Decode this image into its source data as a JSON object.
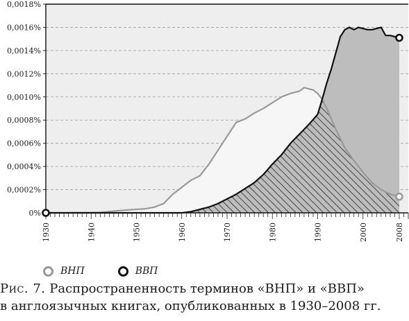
{
  "chart_data": {
    "type": "area",
    "x_ticks": [
      1930,
      1940,
      1950,
      1960,
      1970,
      1980,
      1990,
      2000,
      2008
    ],
    "y_ticks": [
      "0%",
      "0,0002%",
      "0,0004%",
      "0,0006%",
      "0,0008%",
      "0,0010%",
      "0,0012%",
      "0,0014%",
      "0,0016%",
      "0,0018%"
    ],
    "xlim": [
      1930,
      2010
    ],
    "ylim": [
      0,
      0.0018
    ],
    "grid": "horizontal dashed",
    "legend_placement": "bottom-left",
    "series": [
      {
        "name": "ВНП",
        "color": "#999999",
        "x": [
          1930,
          1935,
          1940,
          1942,
          1945,
          1948,
          1950,
          1952,
          1954,
          1956,
          1958,
          1960,
          1962,
          1964,
          1966,
          1968,
          1970,
          1972,
          1974,
          1976,
          1978,
          1980,
          1982,
          1984,
          1986,
          1987,
          1988,
          1989,
          1990,
          1991,
          1992,
          1994,
          1996,
          1998,
          2000,
          2002,
          2004,
          2006,
          2008
        ],
        "values": [
          0.0,
          0.0,
          2e-06,
          3e-06,
          1.5e-05,
          2.5e-05,
          3e-05,
          3.5e-05,
          5e-05,
          8e-05,
          0.00016,
          0.00022,
          0.00028,
          0.00032,
          0.00042,
          0.00054,
          0.00066,
          0.00078,
          0.00081,
          0.00086,
          0.0009,
          0.00095,
          0.001,
          0.00103,
          0.00105,
          0.00108,
          0.00107,
          0.00106,
          0.00103,
          0.00098,
          0.0009,
          0.00072,
          0.00056,
          0.00045,
          0.00035,
          0.00026,
          0.0002,
          0.00016,
          0.00014
        ]
      },
      {
        "name": "ВВП",
        "color": "#111111",
        "x": [
          1930,
          1960,
          1962,
          1964,
          1966,
          1968,
          1970,
          1972,
          1974,
          1976,
          1978,
          1980,
          1982,
          1984,
          1986,
          1988,
          1990,
          1991,
          1992,
          1993,
          1994,
          1995,
          1996,
          1997,
          1998,
          1999,
          2000,
          2001,
          2002,
          2003,
          2004,
          2005,
          2006,
          2007,
          2008
        ],
        "values": [
          0.0,
          0.0,
          1e-05,
          3e-05,
          5e-05,
          8e-05,
          0.00012,
          0.00016,
          0.00021,
          0.00026,
          0.00033,
          0.00042,
          0.0005,
          0.0006,
          0.00068,
          0.00076,
          0.00085,
          0.00098,
          0.00112,
          0.00124,
          0.00138,
          0.00152,
          0.00158,
          0.0016,
          0.00158,
          0.0016,
          0.00159,
          0.00158,
          0.00158,
          0.00159,
          0.0016,
          0.00153,
          0.00153,
          0.00152,
          0.00151
        ]
      }
    ]
  },
  "caption": {
    "label": "Рис. 7.",
    "line1": " Распространенность терминов «ВНП» и «ВВП»",
    "line2": "в англоязычных книгах, опубликованных в 1930–2008 гг."
  }
}
